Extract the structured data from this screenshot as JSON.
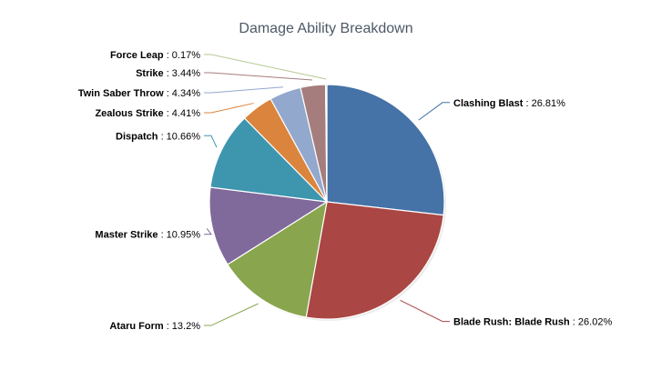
{
  "chart_data": {
    "type": "pie",
    "title": "Damage Ability Breakdown",
    "slices": [
      {
        "name": "Clashing Blast",
        "value": 26.81,
        "display": "26.81%",
        "color": "#4572a7"
      },
      {
        "name": "Blade Rush: Blade Rush",
        "value": 26.02,
        "display": "26.02%",
        "color": "#aa4643"
      },
      {
        "name": "Ataru Form",
        "value": 13.2,
        "display": "13.2%",
        "color": "#89a54e"
      },
      {
        "name": "Master Strike",
        "value": 10.95,
        "display": "10.95%",
        "color": "#80699b"
      },
      {
        "name": "Dispatch",
        "value": 10.66,
        "display": "10.66%",
        "color": "#3d96ae"
      },
      {
        "name": "Zealous Strike",
        "value": 4.41,
        "display": "4.41%",
        "color": "#db843d"
      },
      {
        "name": "Twin Saber Throw",
        "value": 4.34,
        "display": "4.34%",
        "color": "#92a8cd"
      },
      {
        "name": "Strike",
        "value": 3.44,
        "display": "3.44%",
        "color": "#a47d7c"
      },
      {
        "name": "Force Leap",
        "value": 0.17,
        "display": "0.17%",
        "color": "#b5ca92"
      }
    ],
    "separator": " : ",
    "legend": "none",
    "data_labels": "outside with connectors"
  }
}
